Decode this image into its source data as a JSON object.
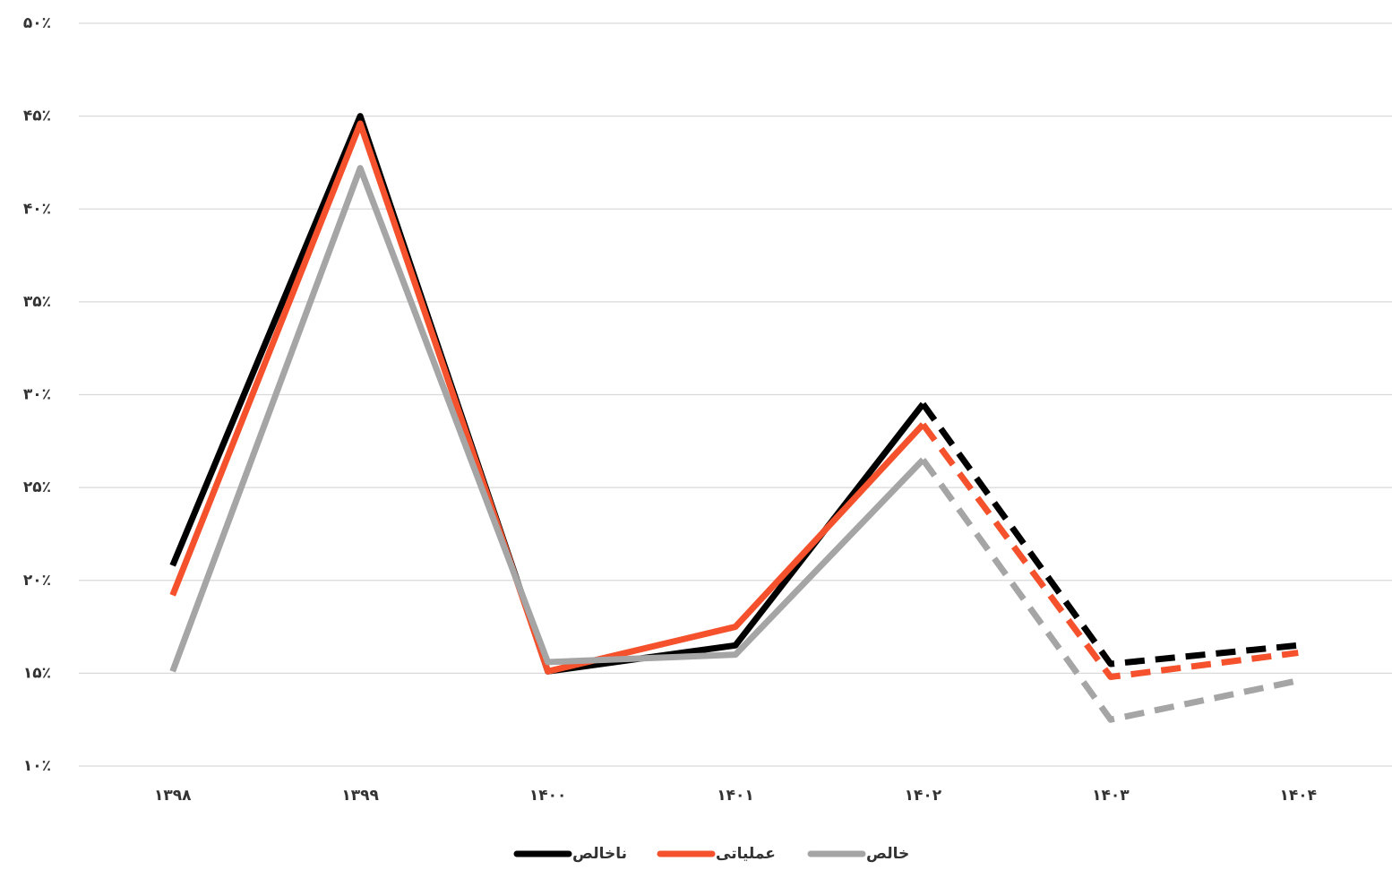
{
  "chart_data": {
    "type": "line",
    "categories": [
      "۱۳۹۸",
      "۱۳۹۹",
      "۱۴۰۰",
      "۱۴۰۱",
      "۱۴۰۲",
      "۱۴۰۳",
      "۱۴۰۴"
    ],
    "series": [
      {
        "name": "ناخالص",
        "color": "#000000",
        "values": [
          20.8,
          45.0,
          15.1,
          16.5,
          29.5,
          15.5,
          16.5
        ]
      },
      {
        "name": "عملیاتی",
        "color": "#f4512c",
        "values": [
          19.2,
          44.6,
          15.1,
          17.5,
          28.4,
          14.8,
          16.1
        ]
      },
      {
        "name": "خالص",
        "color": "#a5a5a5",
        "values": [
          15.1,
          42.2,
          15.6,
          16.0,
          26.5,
          12.5,
          14.6
        ]
      }
    ],
    "dashed_from": "۱۴۰۲",
    "ylim": [
      10,
      50
    ],
    "yticks": [
      {
        "value": 10,
        "label": "۱۰٪"
      },
      {
        "value": 15,
        "label": "۱۵٪"
      },
      {
        "value": 20,
        "label": "۲۰٪"
      },
      {
        "value": 25,
        "label": "۲۵٪"
      },
      {
        "value": 30,
        "label": "۳۰٪"
      },
      {
        "value": 35,
        "label": "۳۵٪"
      },
      {
        "value": 40,
        "label": "۴۰٪"
      },
      {
        "value": 45,
        "label": "۴۵٪"
      },
      {
        "value": 50,
        "label": "۵۰٪"
      }
    ],
    "grid": true,
    "legend": "bottom"
  }
}
